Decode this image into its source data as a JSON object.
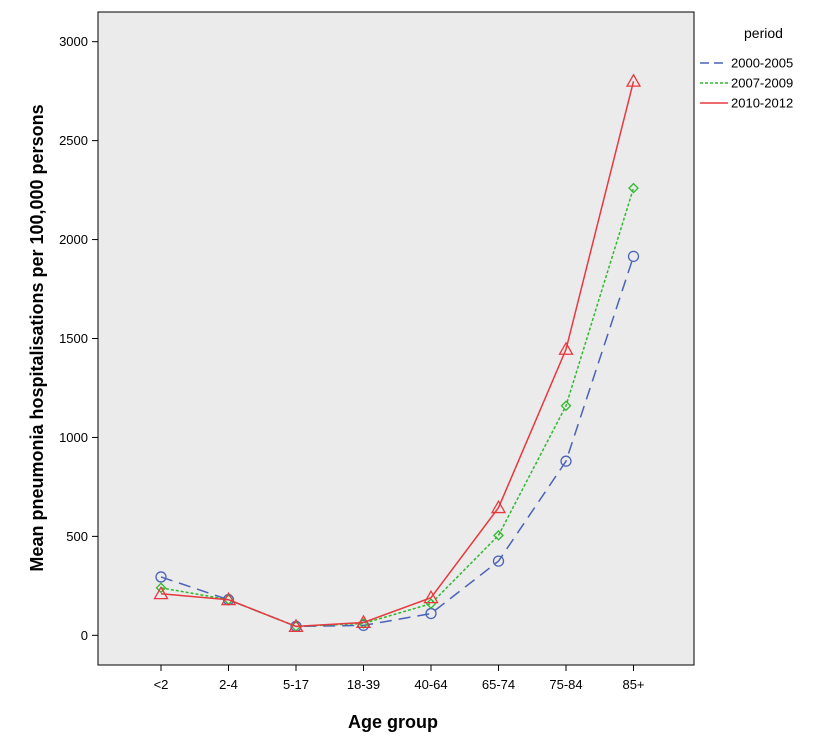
{
  "chart_data": {
    "type": "line",
    "title": "",
    "xlabel": "Age group",
    "ylabel": "Mean pneumonia hospitalisations per 100,000 persons",
    "categories": [
      "<2",
      "2-4",
      "5-17",
      "18-39",
      "40-64",
      "65-74",
      "75-84",
      "85+"
    ],
    "ylim": [
      -150,
      3150
    ],
    "yticks": [
      0,
      500,
      1000,
      1500,
      2000,
      2500,
      3000
    ],
    "grid": false,
    "legend": {
      "title": "period",
      "placement": "right"
    },
    "series": [
      {
        "name": "2000-2005",
        "values": [
          295,
          180,
          45,
          50,
          110,
          375,
          880,
          1915
        ],
        "color": "#4a62b8",
        "dash": "dashed",
        "marker": "circle"
      },
      {
        "name": "2007-2009",
        "values": [
          240,
          180,
          45,
          60,
          160,
          505,
          1160,
          2260
        ],
        "color": "#2eb82e",
        "dash": "dotted",
        "marker": "diamond"
      },
      {
        "name": "2010-2012",
        "values": [
          210,
          180,
          45,
          65,
          190,
          645,
          1445,
          2800
        ],
        "color": "#e8393f",
        "dash": "solid",
        "marker": "triangle"
      }
    ],
    "plot_background": "#ebebeb"
  }
}
